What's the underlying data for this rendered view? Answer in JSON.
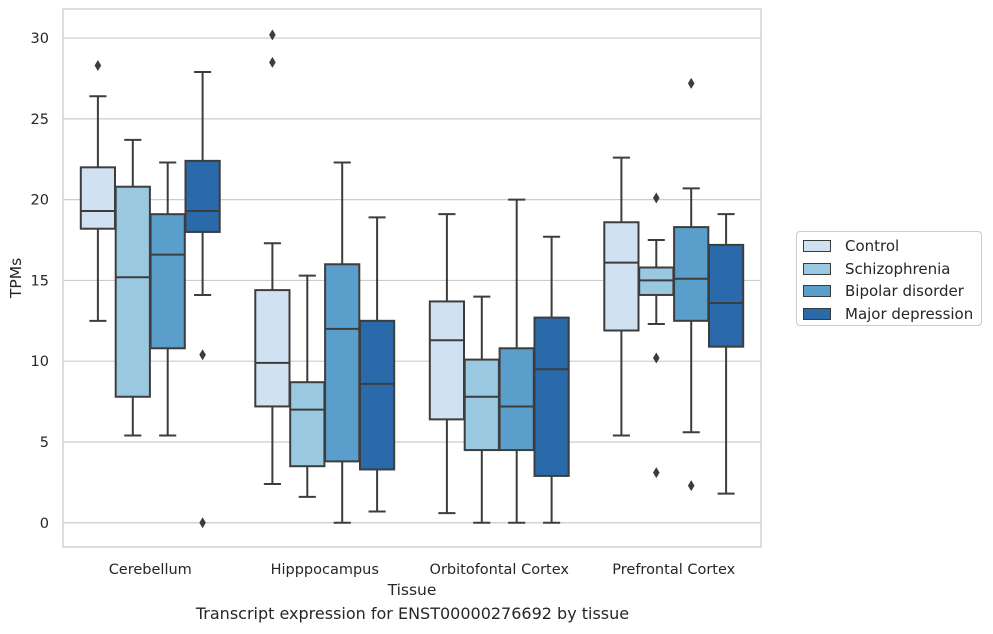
{
  "chart_data": {
    "type": "box",
    "xlabel": "Tissue",
    "ylabel": "TPMs",
    "caption": "Transcript expression for ENST00000276692 by tissue",
    "ylim": [
      -1.5,
      31.8
    ],
    "yticks": [
      0,
      5,
      10,
      15,
      20,
      25,
      30
    ],
    "grid": true,
    "legend_position": "right",
    "categories": [
      "Cerebellum",
      "Hipppocampus",
      "Orbitofontal Cortex",
      "Prefrontal Cortex"
    ],
    "series": [
      {
        "name": "Control",
        "color": "#d0e1f2",
        "boxes": [
          {
            "whislo": 12.5,
            "q1": 18.2,
            "med": 19.3,
            "q3": 22.0,
            "whishi": 26.4,
            "fliers": [
              28.3
            ]
          },
          {
            "whislo": 2.4,
            "q1": 7.2,
            "med": 9.9,
            "q3": 14.4,
            "whishi": 17.3,
            "fliers": [
              30.2,
              28.5
            ]
          },
          {
            "whislo": 0.6,
            "q1": 6.4,
            "med": 11.3,
            "q3": 13.7,
            "whishi": 19.1,
            "fliers": []
          },
          {
            "whislo": 5.4,
            "q1": 11.9,
            "med": 16.1,
            "q3": 18.6,
            "whishi": 22.6,
            "fliers": []
          }
        ]
      },
      {
        "name": "Schizophrenia",
        "color": "#9ac8e0",
        "boxes": [
          {
            "whislo": 5.4,
            "q1": 7.8,
            "med": 15.2,
            "q3": 20.8,
            "whishi": 23.7,
            "fliers": []
          },
          {
            "whislo": 1.6,
            "q1": 3.5,
            "med": 7.0,
            "q3": 8.7,
            "whishi": 15.3,
            "fliers": []
          },
          {
            "whislo": 0.0,
            "q1": 4.5,
            "med": 7.8,
            "q3": 10.1,
            "whishi": 14.0,
            "fliers": []
          },
          {
            "whislo": 12.3,
            "q1": 14.1,
            "med": 15.0,
            "q3": 15.8,
            "whishi": 17.5,
            "fliers": [
              20.1,
              10.2,
              3.1
            ]
          }
        ]
      },
      {
        "name": "Bipolar disorder",
        "color": "#5a9ecc",
        "boxes": [
          {
            "whislo": 5.4,
            "q1": 10.8,
            "med": 16.6,
            "q3": 19.1,
            "whishi": 22.3,
            "fliers": []
          },
          {
            "whislo": 0.0,
            "q1": 3.8,
            "med": 12.0,
            "q3": 16.0,
            "whishi": 22.3,
            "fliers": []
          },
          {
            "whislo": 0.0,
            "q1": 4.5,
            "med": 7.2,
            "q3": 10.8,
            "whishi": 20.0,
            "fliers": []
          },
          {
            "whislo": 5.6,
            "q1": 12.5,
            "med": 15.1,
            "q3": 18.3,
            "whishi": 20.7,
            "fliers": [
              27.2,
              2.3
            ]
          }
        ]
      },
      {
        "name": "Major depression",
        "color": "#2a6aaa",
        "boxes": [
          {
            "whislo": 14.1,
            "q1": 18.0,
            "med": 19.3,
            "q3": 22.4,
            "whishi": 27.9,
            "fliers": [
              10.4,
              0.0
            ]
          },
          {
            "whislo": 0.7,
            "q1": 3.3,
            "med": 8.6,
            "q3": 12.5,
            "whishi": 18.9,
            "fliers": []
          },
          {
            "whislo": 0.0,
            "q1": 2.9,
            "med": 9.5,
            "q3": 12.7,
            "whishi": 17.7,
            "fliers": []
          },
          {
            "whislo": 1.8,
            "q1": 10.9,
            "med": 13.6,
            "q3": 17.2,
            "whishi": 19.1,
            "fliers": []
          }
        ]
      }
    ]
  }
}
